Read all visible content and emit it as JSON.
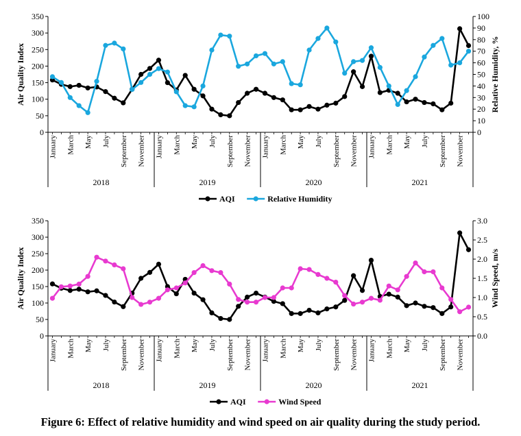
{
  "figure": {
    "caption": "Figure 6: Effect of relative humidity and wind speed on air quality during the study period."
  },
  "chart_data": [
    {
      "type": "line",
      "x_tick_labels": [
        "January",
        "March",
        "May",
        "July",
        "September",
        "November"
      ],
      "years": [
        "2018",
        "2019",
        "2020",
        "2021"
      ],
      "ylabel": "Air Quality Index",
      "y2label": "Relative Humidity, %",
      "ylim": [
        0,
        350
      ],
      "y_ticks": [
        0,
        50,
        100,
        150,
        200,
        250,
        300,
        350
      ],
      "y2lim": [
        0,
        100
      ],
      "y2_ticks": [
        0,
        10,
        20,
        30,
        40,
        50,
        60,
        70,
        80,
        90,
        100
      ],
      "legend_position": "bottom-center",
      "grid": false,
      "series": [
        {
          "name": "AQI",
          "axis": "left",
          "color": "#000000",
          "values": [
            158,
            145,
            138,
            142,
            134,
            137,
            123,
            103,
            89,
            130,
            175,
            193,
            218,
            150,
            128,
            172,
            130,
            110,
            70,
            53,
            50,
            90,
            118,
            130,
            118,
            105,
            98,
            68,
            68,
            78,
            70,
            82,
            88,
            108,
            183,
            138,
            230,
            120,
            127,
            118,
            92,
            100,
            90,
            86,
            68,
            88,
            313,
            262
          ]
        },
        {
          "name": "Relative Humidity",
          "axis": "right",
          "color": "#1aa7de",
          "values": [
            48,
            43,
            30,
            23,
            17,
            44,
            75,
            77,
            72,
            37,
            43,
            50,
            55,
            52,
            35,
            23,
            22,
            40,
            71,
            84,
            83,
            57,
            59,
            66,
            68,
            59,
            61,
            42,
            41,
            71,
            81,
            90,
            78,
            51,
            61,
            62,
            73,
            56,
            40,
            24,
            36,
            48,
            65,
            75,
            81,
            58,
            60,
            70
          ]
        }
      ]
    },
    {
      "type": "line",
      "x_tick_labels": [
        "January",
        "March",
        "May",
        "July",
        "September",
        "November"
      ],
      "years": [
        "2018",
        "2019",
        "2020",
        "2021"
      ],
      "ylabel": "Air Quality Index",
      "y2label": "Wind Speed, m/s",
      "ylim": [
        0,
        350
      ],
      "y_ticks": [
        0,
        50,
        100,
        150,
        200,
        250,
        300,
        350
      ],
      "y2lim": [
        0,
        3.0
      ],
      "y2_ticks": [
        "0.0",
        "0.5",
        "1.0",
        "1.5",
        "2.0",
        "2.5",
        "3.0"
      ],
      "legend_position": "bottom-center",
      "grid": false,
      "series": [
        {
          "name": "AQI",
          "axis": "left",
          "color": "#000000",
          "values": [
            158,
            145,
            138,
            142,
            134,
            137,
            123,
            103,
            89,
            130,
            175,
            193,
            218,
            150,
            128,
            172,
            130,
            110,
            70,
            53,
            50,
            90,
            118,
            130,
            118,
            105,
            98,
            68,
            68,
            78,
            70,
            82,
            88,
            108,
            183,
            138,
            230,
            120,
            127,
            118,
            92,
            100,
            90,
            86,
            68,
            88,
            313,
            262
          ]
        },
        {
          "name": "Wind Speed",
          "axis": "right",
          "color": "#e83ad0",
          "values": [
            0.98,
            1.28,
            1.3,
            1.35,
            1.55,
            2.05,
            1.95,
            1.85,
            1.75,
            1.0,
            0.82,
            0.88,
            0.98,
            1.2,
            1.25,
            1.38,
            1.65,
            1.83,
            1.7,
            1.65,
            1.35,
            0.95,
            0.88,
            0.88,
            1.0,
            1.0,
            1.25,
            1.25,
            1.75,
            1.73,
            1.6,
            1.5,
            1.4,
            1.05,
            0.83,
            0.88,
            0.98,
            0.93,
            1.3,
            1.2,
            1.55,
            1.9,
            1.67,
            1.67,
            1.25,
            0.95,
            0.63,
            0.75
          ]
        }
      ]
    }
  ]
}
